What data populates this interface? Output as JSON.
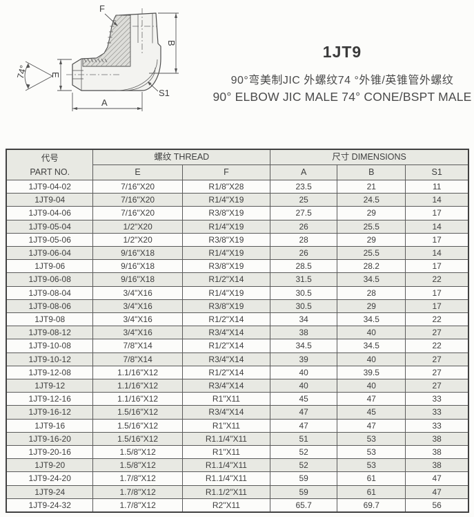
{
  "header": {
    "title": "1JT9",
    "subtitle_cn": "90°弯美制JIC 外螺纹74 °外锥/英锥管外螺纹",
    "subtitle_en": "90° ELBOW JIC MALE 74° CONE/BSPT MALE"
  },
  "drawing": {
    "labels": {
      "f": "F",
      "b": "B",
      "e": "E",
      "a": "A",
      "s1": "S1",
      "angle": "74°"
    }
  },
  "colors": {
    "row_shade": "#e8e9e3",
    "border": "#595959",
    "text": "#3e3e3e"
  },
  "table": {
    "header_row1": {
      "part_cn": "代号",
      "thread": "螺纹 THREAD",
      "dimensions": "尺寸 DIMENSIONS"
    },
    "header_row2": {
      "part_no": "PART NO.",
      "e": "E",
      "f": "F",
      "a": "A",
      "b": "B",
      "s1": "S1"
    },
    "rows": [
      {
        "part_no": "1JT9-04-02",
        "e": "7/16\"X20",
        "f": "R1/8\"X28",
        "a": "23.5",
        "b": "21",
        "s1": "11"
      },
      {
        "part_no": "1JT9-04",
        "e": "7/16\"X20",
        "f": "R1/4\"X19",
        "a": "25",
        "b": "24.5",
        "s1": "14"
      },
      {
        "part_no": "1JT9-04-06",
        "e": "7/16\"X20",
        "f": "R3/8\"X19",
        "a": "27.5",
        "b": "29",
        "s1": "17"
      },
      {
        "part_no": "1JT9-05-04",
        "e": "1/2\"X20",
        "f": "R1/4\"X19",
        "a": "26",
        "b": "25.5",
        "s1": "14"
      },
      {
        "part_no": "1JT9-05-06",
        "e": "1/2\"X20",
        "f": "R3/8\"X19",
        "a": "28",
        "b": "29",
        "s1": "17"
      },
      {
        "part_no": "1JT9-06-04",
        "e": "9/16\"X18",
        "f": "R1/4\"X19",
        "a": "26",
        "b": "25.5",
        "s1": "14"
      },
      {
        "part_no": "1JT9-06",
        "e": "9/16\"X18",
        "f": "R3/8\"X19",
        "a": "28.5",
        "b": "28.2",
        "s1": "17"
      },
      {
        "part_no": "1JT9-06-08",
        "e": "9/16\"X18",
        "f": "R1/2\"X14",
        "a": "31.5",
        "b": "34.5",
        "s1": "22"
      },
      {
        "part_no": "1JT9-08-04",
        "e": "3/4\"X16",
        "f": "R1/4\"X19",
        "a": "30.5",
        "b": "28",
        "s1": "17"
      },
      {
        "part_no": "1JT9-08-06",
        "e": "3/4\"X16",
        "f": "R3/8\"X19",
        "a": "30.5",
        "b": "29",
        "s1": "17"
      },
      {
        "part_no": "1JT9-08",
        "e": "3/4\"X16",
        "f": "R1/2\"X14",
        "a": "34",
        "b": "34.5",
        "s1": "22"
      },
      {
        "part_no": "1JT9-08-12",
        "e": "3/4\"X16",
        "f": "R3/4\"X14",
        "a": "38",
        "b": "40",
        "s1": "27"
      },
      {
        "part_no": "1JT9-10-08",
        "e": "7/8\"X14",
        "f": "R1/2\"X14",
        "a": "34.5",
        "b": "34.5",
        "s1": "22"
      },
      {
        "part_no": "1JT9-10-12",
        "e": "7/8\"X14",
        "f": "R3/4\"X14",
        "a": "39",
        "b": "40",
        "s1": "27"
      },
      {
        "part_no": "1JT9-12-08",
        "e": "1.1/16\"X12",
        "f": "R1/2\"X14",
        "a": "40",
        "b": "39.5",
        "s1": "27"
      },
      {
        "part_no": "1JT9-12",
        "e": "1.1/16\"X12",
        "f": "R3/4\"X14",
        "a": "40",
        "b": "40",
        "s1": "27"
      },
      {
        "part_no": "1JT9-12-16",
        "e": "1.1/16\"X12",
        "f": "R1\"X11",
        "a": "45",
        "b": "47",
        "s1": "33"
      },
      {
        "part_no": "1JT9-16-12",
        "e": "1.5/16\"X12",
        "f": "R3/4\"X14",
        "a": "47",
        "b": "45",
        "s1": "33"
      },
      {
        "part_no": "1JT9-16",
        "e": "1.5/16\"X12",
        "f": "R1\"X11",
        "a": "47",
        "b": "47",
        "s1": "33"
      },
      {
        "part_no": "1JT9-16-20",
        "e": "1.5/16\"X12",
        "f": "R1.1/4\"X11",
        "a": "51",
        "b": "53",
        "s1": "38"
      },
      {
        "part_no": "1JT9-20-16",
        "e": "1.5/8\"X12",
        "f": "R1\"X11",
        "a": "52",
        "b": "53",
        "s1": "38"
      },
      {
        "part_no": "1JT9-20",
        "e": "1.5/8\"X12",
        "f": "R1.1/4\"X11",
        "a": "52",
        "b": "53",
        "s1": "38"
      },
      {
        "part_no": "1JT9-24-20",
        "e": "1.7/8\"X12",
        "f": "R1.1/4\"X11",
        "a": "59",
        "b": "61",
        "s1": "47"
      },
      {
        "part_no": "1JT9-24",
        "e": "1.7/8\"X12",
        "f": "R1.1/2\"X11",
        "a": "59",
        "b": "61",
        "s1": "47"
      },
      {
        "part_no": "1JT9-24-32",
        "e": "1.7/8\"X12",
        "f": "R2\"X11",
        "a": "65.7",
        "b": "69.7",
        "s1": "56"
      }
    ]
  }
}
